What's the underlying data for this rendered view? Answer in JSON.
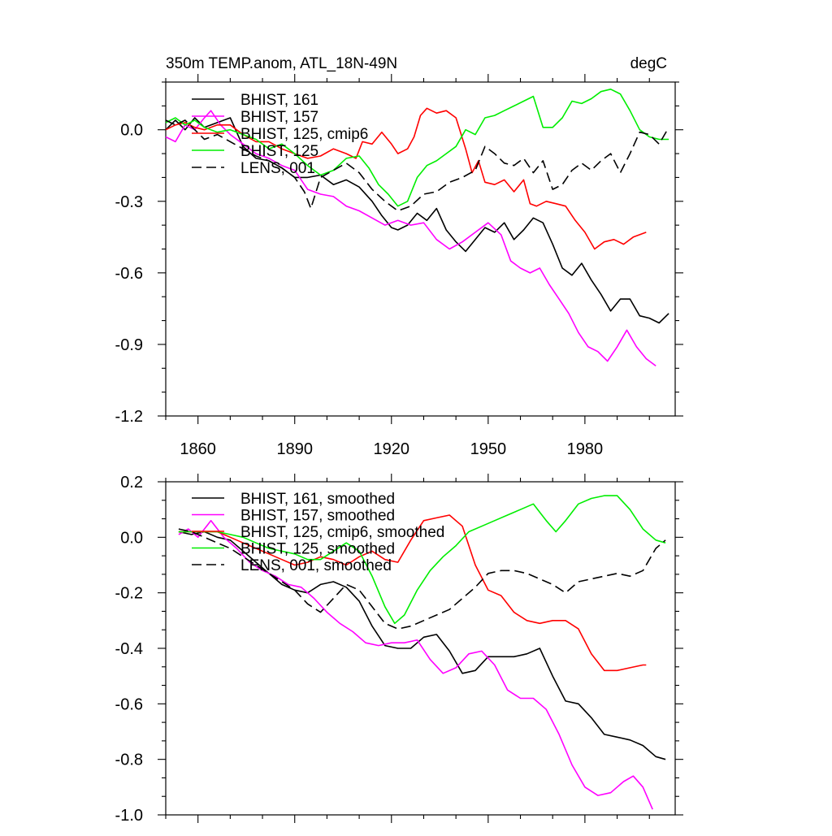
{
  "chart_data": [
    {
      "type": "line",
      "title": "350m TEMP.anom, ATL_18N-49N",
      "units": "degC",
      "xlim": [
        1850,
        2008
      ],
      "ylim": [
        -1.2,
        0.2
      ],
      "x_ticks": [
        1860,
        1890,
        1920,
        1950,
        1980
      ],
      "y_ticks": [
        0.0,
        -0.3,
        -0.6,
        -0.9,
        -1.2
      ],
      "y_tick_labels": [
        "0.0",
        "-0.3",
        "-0.6",
        "-0.9",
        "-1.2"
      ],
      "series": [
        {
          "name": "BHIST, 161",
          "color": "#000000",
          "dash": "solid",
          "x": [
            1850,
            1853,
            1856,
            1859,
            1862,
            1866,
            1870,
            1874,
            1878,
            1882,
            1886,
            1890,
            1894,
            1898,
            1902,
            1906,
            1910,
            1914,
            1917,
            1920,
            1922,
            1925,
            1928,
            1931,
            1934,
            1937,
            1940,
            1943,
            1946,
            1949,
            1952,
            1955,
            1958,
            1961,
            1964,
            1967,
            1970,
            1973,
            1976,
            1979,
            1982,
            1985,
            1988,
            1991,
            1994,
            1997,
            2000,
            2003,
            2006
          ],
          "y": [
            0.0,
            0.04,
            0.0,
            0.05,
            0.01,
            0.03,
            0.05,
            -0.07,
            -0.12,
            -0.13,
            -0.16,
            -0.2,
            -0.2,
            -0.19,
            -0.23,
            -0.21,
            -0.24,
            -0.3,
            -0.36,
            -0.41,
            -0.42,
            -0.4,
            -0.35,
            -0.38,
            -0.33,
            -0.42,
            -0.47,
            -0.51,
            -0.46,
            -0.41,
            -0.43,
            -0.39,
            -0.46,
            -0.42,
            -0.37,
            -0.39,
            -0.48,
            -0.58,
            -0.61,
            -0.56,
            -0.63,
            -0.69,
            -0.76,
            -0.71,
            -0.71,
            -0.78,
            -0.79,
            -0.81,
            -0.77
          ]
        },
        {
          "name": "BHIST, 157",
          "color": "#ff00ff",
          "dash": "solid",
          "x": [
            1850,
            1853,
            1856,
            1859,
            1862,
            1864,
            1867,
            1870,
            1874,
            1878,
            1882,
            1886,
            1890,
            1894,
            1898,
            1902,
            1906,
            1910,
            1914,
            1918,
            1922,
            1926,
            1930,
            1934,
            1938,
            1942,
            1946,
            1950,
            1954,
            1957,
            1960,
            1963,
            1966,
            1969,
            1972,
            1975,
            1978,
            1981,
            1984,
            1987,
            1990,
            1993,
            1996,
            1999,
            2002
          ],
          "y": [
            -0.03,
            -0.05,
            0.02,
            0.0,
            0.05,
            0.08,
            0.02,
            -0.02,
            -0.06,
            -0.1,
            -0.12,
            -0.15,
            -0.17,
            -0.25,
            -0.27,
            -0.28,
            -0.32,
            -0.34,
            -0.37,
            -0.4,
            -0.38,
            -0.4,
            -0.39,
            -0.46,
            -0.5,
            -0.47,
            -0.43,
            -0.39,
            -0.44,
            -0.55,
            -0.58,
            -0.6,
            -0.58,
            -0.65,
            -0.71,
            -0.77,
            -0.85,
            -0.91,
            -0.93,
            -0.97,
            -0.91,
            -0.84,
            -0.91,
            -0.96,
            -0.99
          ]
        },
        {
          "name": "BHIST, 125, cmip6",
          "color": "#ff0000",
          "dash": "solid",
          "x": [
            1850,
            1853,
            1856,
            1859,
            1862,
            1866,
            1870,
            1874,
            1878,
            1882,
            1886,
            1890,
            1894,
            1898,
            1902,
            1906,
            1909,
            1911,
            1914,
            1917,
            1920,
            1922,
            1925,
            1927,
            1929,
            1931,
            1934,
            1937,
            1940,
            1943,
            1945,
            1947,
            1949,
            1952,
            1955,
            1958,
            1961,
            1963,
            1965,
            1968,
            1971,
            1974,
            1977,
            1980,
            1983,
            1986,
            1989,
            1992,
            1995,
            1999
          ],
          "y": [
            0.0,
            0.02,
            0.03,
            0.01,
            0.0,
            0.02,
            0.02,
            -0.02,
            -0.05,
            -0.05,
            -0.08,
            -0.1,
            -0.12,
            -0.11,
            -0.08,
            -0.1,
            -0.12,
            -0.05,
            -0.06,
            -0.01,
            -0.06,
            -0.1,
            -0.08,
            -0.03,
            0.06,
            0.09,
            0.07,
            0.08,
            0.05,
            -0.08,
            -0.18,
            -0.13,
            -0.22,
            -0.23,
            -0.21,
            -0.26,
            -0.21,
            -0.31,
            -0.32,
            -0.3,
            -0.31,
            -0.32,
            -0.38,
            -0.43,
            -0.5,
            -0.47,
            -0.46,
            -0.48,
            -0.45,
            -0.43
          ]
        },
        {
          "name": "BHIST, 125",
          "color": "#00ee00",
          "dash": "solid",
          "x": [
            1850,
            1853,
            1856,
            1859,
            1862,
            1866,
            1870,
            1874,
            1878,
            1882,
            1886,
            1890,
            1894,
            1898,
            1902,
            1906,
            1910,
            1913,
            1916,
            1919,
            1922,
            1925,
            1928,
            1931,
            1934,
            1937,
            1940,
            1943,
            1946,
            1949,
            1952,
            1955,
            1958,
            1961,
            1964,
            1967,
            1970,
            1973,
            1976,
            1979,
            1982,
            1985,
            1988,
            1991,
            1994,
            1997,
            2000,
            2003,
            2006
          ],
          "y": [
            0.03,
            0.05,
            0.02,
            0.04,
            0.01,
            -0.01,
            0.0,
            -0.02,
            -0.04,
            -0.08,
            -0.06,
            -0.1,
            -0.15,
            -0.19,
            -0.17,
            -0.12,
            -0.11,
            -0.16,
            -0.23,
            -0.27,
            -0.32,
            -0.3,
            -0.2,
            -0.15,
            -0.13,
            -0.1,
            -0.07,
            0.0,
            -0.02,
            0.05,
            0.06,
            0.08,
            0.1,
            0.12,
            0.14,
            0.01,
            0.01,
            0.05,
            0.12,
            0.11,
            0.13,
            0.16,
            0.17,
            0.15,
            0.08,
            0.0,
            -0.03,
            -0.04,
            -0.04
          ]
        },
        {
          "name": "LENS, 001",
          "color": "#000000",
          "dash": "dashed",
          "x": [
            1850,
            1853,
            1856,
            1859,
            1862,
            1866,
            1870,
            1874,
            1878,
            1882,
            1886,
            1890,
            1893,
            1895,
            1898,
            1902,
            1906,
            1910,
            1914,
            1918,
            1922,
            1926,
            1930,
            1934,
            1938,
            1942,
            1946,
            1949,
            1952,
            1955,
            1958,
            1961,
            1964,
            1967,
            1970,
            1973,
            1976,
            1979,
            1982,
            1985,
            1988,
            1991,
            1994,
            1997,
            2000,
            2003,
            2006
          ],
          "y": [
            0.04,
            0.02,
            0.04,
            0.0,
            -0.04,
            -0.02,
            -0.05,
            -0.08,
            -0.11,
            -0.13,
            -0.16,
            -0.2,
            -0.26,
            -0.33,
            -0.2,
            -0.17,
            -0.14,
            -0.18,
            -0.25,
            -0.3,
            -0.34,
            -0.32,
            -0.27,
            -0.26,
            -0.22,
            -0.2,
            -0.17,
            -0.07,
            -0.1,
            -0.14,
            -0.15,
            -0.12,
            -0.18,
            -0.13,
            -0.25,
            -0.23,
            -0.17,
            -0.14,
            -0.17,
            -0.13,
            -0.1,
            -0.18,
            -0.1,
            -0.01,
            -0.02,
            -0.06,
            0.01
          ]
        }
      ]
    },
    {
      "type": "line",
      "xlim": [
        1850,
        2008
      ],
      "ylim": [
        -1.0,
        0.2
      ],
      "x_ticks": [
        1860,
        1890,
        1920,
        1950,
        1980
      ],
      "y_ticks": [
        0.2,
        0.0,
        -0.2,
        -0.4,
        -0.6,
        -0.8,
        -1.0
      ],
      "y_tick_labels": [
        "0.2",
        "0.0",
        "-0.2",
        "-0.4",
        "-0.6",
        "-0.8",
        "-1.0"
      ],
      "series": [
        {
          "name": "BHIST, 161, smoothed",
          "color": "#000000",
          "dash": "solid",
          "x": [
            1854,
            1858,
            1862,
            1866,
            1870,
            1874,
            1878,
            1882,
            1886,
            1890,
            1894,
            1898,
            1902,
            1906,
            1910,
            1914,
            1918,
            1922,
            1926,
            1930,
            1934,
            1938,
            1942,
            1946,
            1950,
            1954,
            1958,
            1962,
            1966,
            1970,
            1974,
            1978,
            1982,
            1986,
            1990,
            1994,
            1998,
            2002,
            2005
          ],
          "y": [
            0.02,
            0.01,
            0.02,
            0.0,
            -0.01,
            -0.05,
            -0.09,
            -0.13,
            -0.17,
            -0.19,
            -0.2,
            -0.17,
            -0.16,
            -0.18,
            -0.23,
            -0.32,
            -0.39,
            -0.4,
            -0.4,
            -0.36,
            -0.35,
            -0.41,
            -0.49,
            -0.48,
            -0.43,
            -0.43,
            -0.43,
            -0.42,
            -0.4,
            -0.5,
            -0.59,
            -0.6,
            -0.65,
            -0.71,
            -0.72,
            -0.73,
            -0.75,
            -0.79,
            -0.8
          ]
        },
        {
          "name": "BHIST, 157, smoothed",
          "color": "#ff00ff",
          "dash": "solid",
          "x": [
            1854,
            1857,
            1860,
            1864,
            1868,
            1872,
            1876,
            1880,
            1884,
            1888,
            1892,
            1896,
            1900,
            1904,
            1908,
            1912,
            1916,
            1920,
            1924,
            1928,
            1932,
            1936,
            1940,
            1944,
            1948,
            1952,
            1956,
            1960,
            1964,
            1968,
            1972,
            1976,
            1980,
            1984,
            1988,
            1992,
            1995,
            1998,
            2001
          ],
          "y": [
            0.01,
            0.03,
            0.0,
            0.06,
            0.0,
            -0.04,
            -0.09,
            -0.12,
            -0.14,
            -0.17,
            -0.18,
            -0.22,
            -0.27,
            -0.31,
            -0.34,
            -0.38,
            -0.39,
            -0.38,
            -0.38,
            -0.37,
            -0.44,
            -0.49,
            -0.47,
            -0.42,
            -0.41,
            -0.46,
            -0.55,
            -0.58,
            -0.58,
            -0.62,
            -0.71,
            -0.82,
            -0.9,
            -0.93,
            -0.92,
            -0.88,
            -0.86,
            -0.9,
            -0.98
          ]
        },
        {
          "name": "BHIST, 125, cmip6, smoothed",
          "color": "#ff0000",
          "dash": "solid",
          "x": [
            1854,
            1858,
            1862,
            1866,
            1870,
            1874,
            1878,
            1882,
            1886,
            1890,
            1894,
            1898,
            1902,
            1906,
            1910,
            1914,
            1918,
            1922,
            1926,
            1930,
            1934,
            1938,
            1942,
            1946,
            1950,
            1954,
            1958,
            1962,
            1966,
            1970,
            1974,
            1978,
            1982,
            1986,
            1990,
            1994,
            1998,
            1999
          ],
          "y": [
            0.02,
            0.02,
            0.02,
            0.02,
            0.0,
            -0.02,
            -0.04,
            -0.06,
            -0.08,
            -0.1,
            -0.09,
            -0.07,
            -0.08,
            -0.1,
            -0.07,
            -0.05,
            -0.08,
            -0.09,
            -0.01,
            0.06,
            0.07,
            0.08,
            0.04,
            -0.1,
            -0.19,
            -0.21,
            -0.27,
            -0.3,
            -0.31,
            -0.3,
            -0.3,
            -0.33,
            -0.42,
            -0.48,
            -0.48,
            -0.47,
            -0.46,
            -0.46
          ]
        },
        {
          "name": "BHIST, 125, smoothed",
          "color": "#00ee00",
          "dash": "solid",
          "x": [
            1854,
            1858,
            1862,
            1866,
            1870,
            1874,
            1878,
            1882,
            1886,
            1890,
            1894,
            1898,
            1902,
            1906,
            1910,
            1914,
            1918,
            1921,
            1924,
            1928,
            1932,
            1936,
            1940,
            1944,
            1948,
            1952,
            1956,
            1960,
            1964,
            1968,
            1971,
            1974,
            1978,
            1982,
            1986,
            1990,
            1994,
            1998,
            2002,
            2005
          ],
          "y": [
            0.02,
            0.02,
            0.02,
            0.02,
            0.01,
            0.0,
            -0.02,
            -0.04,
            -0.05,
            -0.06,
            -0.08,
            -0.08,
            -0.05,
            -0.02,
            -0.05,
            -0.14,
            -0.25,
            -0.31,
            -0.28,
            -0.19,
            -0.12,
            -0.07,
            -0.03,
            0.02,
            0.04,
            0.06,
            0.08,
            0.1,
            0.12,
            0.06,
            0.02,
            0.06,
            0.12,
            0.14,
            0.15,
            0.15,
            0.1,
            0.03,
            -0.01,
            -0.02
          ]
        },
        {
          "name": "LENS, 001, smoothed",
          "color": "#000000",
          "dash": "dashed",
          "x": [
            1854,
            1858,
            1862,
            1866,
            1870,
            1874,
            1878,
            1882,
            1886,
            1890,
            1894,
            1898,
            1902,
            1906,
            1910,
            1914,
            1918,
            1922,
            1926,
            1930,
            1934,
            1938,
            1942,
            1946,
            1950,
            1954,
            1958,
            1962,
            1966,
            1970,
            1974,
            1978,
            1982,
            1986,
            1990,
            1994,
            1998,
            2002,
            2005
          ],
          "y": [
            0.03,
            0.02,
            0.0,
            -0.02,
            -0.04,
            -0.07,
            -0.1,
            -0.13,
            -0.16,
            -0.19,
            -0.24,
            -0.27,
            -0.22,
            -0.17,
            -0.19,
            -0.25,
            -0.31,
            -0.33,
            -0.32,
            -0.3,
            -0.28,
            -0.26,
            -0.22,
            -0.18,
            -0.13,
            -0.12,
            -0.12,
            -0.13,
            -0.15,
            -0.17,
            -0.2,
            -0.16,
            -0.15,
            -0.14,
            -0.13,
            -0.14,
            -0.12,
            -0.04,
            -0.01
          ]
        }
      ]
    }
  ]
}
